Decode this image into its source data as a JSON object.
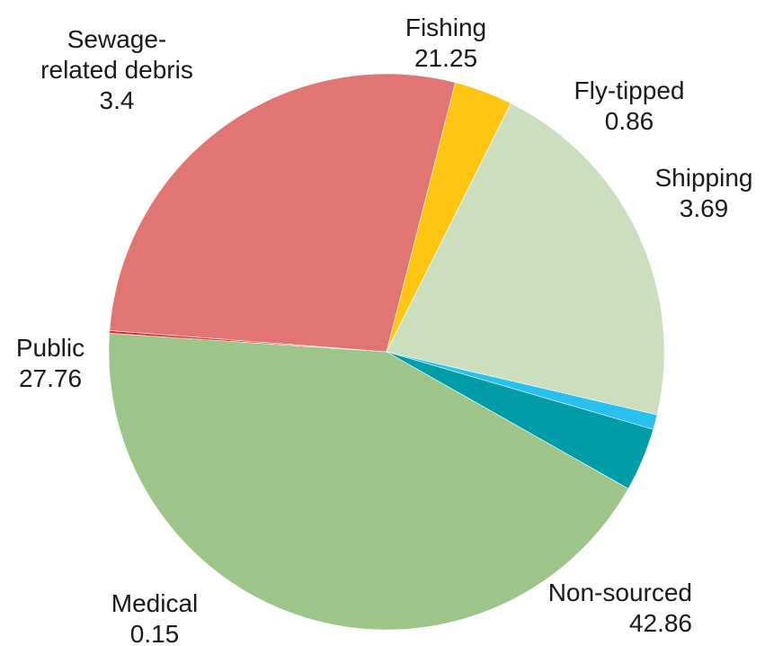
{
  "chart_data": {
    "type": "pie",
    "title": "",
    "slices": [
      {
        "label_lines": [
          "Non-sourced"
        ],
        "value": 42.86,
        "value_text": "42.86",
        "color": "#9dc58a"
      },
      {
        "label_lines": [
          "Medical"
        ],
        "value": 0.15,
        "value_text": "0.15",
        "color": "#e0252b"
      },
      {
        "label_lines": [
          "Public"
        ],
        "value": 27.76,
        "value_text": "27.76",
        "color": "#e07574"
      },
      {
        "label_lines": [
          "Sewage-",
          "related debris"
        ],
        "value": 3.4,
        "value_text": "3.4",
        "color": "#fec513"
      },
      {
        "label_lines": [
          "Fishing"
        ],
        "value": 21.25,
        "value_text": "21.25",
        "color": "#cbdfbe"
      },
      {
        "label_lines": [
          "Fly-tipped"
        ],
        "value": 0.86,
        "value_text": "0.86",
        "color": "#29c0ef"
      },
      {
        "label_lines": [
          "Shipping"
        ],
        "value": 3.69,
        "value_text": "3.69",
        "color": "#009da9"
      }
    ]
  }
}
